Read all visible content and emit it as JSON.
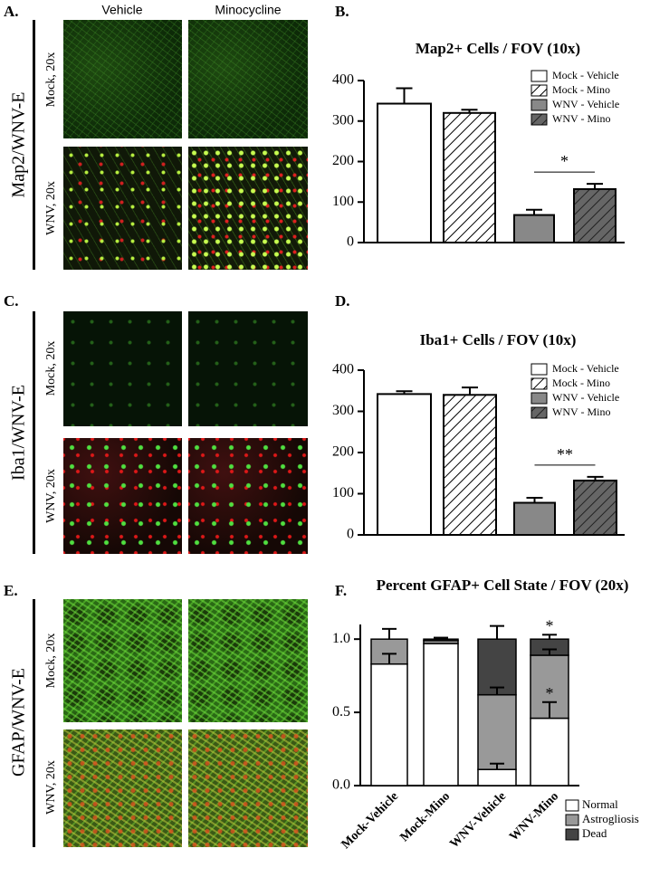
{
  "figure": {
    "panels": [
      "A.",
      "B.",
      "C.",
      "D.",
      "E.",
      "F."
    ],
    "columns": [
      "Vehicle",
      "Minocycline"
    ],
    "rows": [
      {
        "label": "Map2/WNV-E",
        "conditions": [
          "Mock, 20x",
          "WNV, 20x"
        ]
      },
      {
        "label": "Iba1/WNV-E",
        "conditions": [
          "Mock, 20x",
          "WNV, 20x"
        ]
      },
      {
        "label": "GFAP/WNV-E",
        "conditions": [
          "Mock, 20x",
          "WNV, 20x"
        ]
      }
    ]
  },
  "chart_data": [
    {
      "type": "bar",
      "title": "Map2+ Cells / FOV (10x)",
      "categories": [
        "Mock - Vehicle",
        "Mock - Mino",
        "WNV - Vehicle",
        "WNV - Mino"
      ],
      "values": [
        343,
        320,
        68,
        132
      ],
      "errors": [
        38,
        8,
        13,
        13
      ],
      "colors": [
        "#ffffff",
        "#ffffff",
        "#888888",
        "#666666"
      ],
      "hatch": [
        false,
        true,
        false,
        true
      ],
      "ylim": [
        0,
        400
      ],
      "yticks": [
        0,
        100,
        200,
        300,
        400
      ],
      "annotation": "*"
    },
    {
      "type": "bar",
      "title": "Iba1+ Cells / FOV (10x)",
      "categories": [
        "Mock - Vehicle",
        "Mock - Mino",
        "WNV - Vehicle",
        "WNV - Mino"
      ],
      "values": [
        342,
        340,
        78,
        132
      ],
      "errors": [
        7,
        18,
        12,
        9
      ],
      "colors": [
        "#ffffff",
        "#ffffff",
        "#888888",
        "#666666"
      ],
      "hatch": [
        false,
        true,
        false,
        true
      ],
      "ylim": [
        0,
        400
      ],
      "yticks": [
        0,
        100,
        200,
        300,
        400
      ],
      "annotation": "**"
    },
    {
      "type": "stacked_bar",
      "title": "Percent GFAP+ Cell State / FOV (20x)",
      "categories": [
        "Mock-Vehicle",
        "Mock-Mino",
        "WNV-Vehicle",
        "WNV-Mino"
      ],
      "series": [
        {
          "name": "Normal",
          "color": "#ffffff",
          "values": [
            0.83,
            0.97,
            0.11,
            0.46
          ],
          "errors": [
            0.07,
            null,
            0.04,
            0.11
          ]
        },
        {
          "name": "Astrogliosis",
          "color": "#999999",
          "values": [
            0.17,
            0.02,
            0.51,
            0.43
          ],
          "errors": [
            0.07,
            null,
            0.05,
            0.04
          ]
        },
        {
          "name": "Dead",
          "color": "#444444",
          "values": [
            0,
            0.01,
            0.38,
            0.11
          ],
          "errors": [
            null,
            0.01,
            0.09,
            0.03
          ]
        }
      ],
      "ylim": [
        0,
        1.1
      ],
      "yticks": [
        {
          "value": 0,
          "label": "0.0"
        },
        {
          "value": 0.5,
          "label": "0.5"
        },
        {
          "value": 1,
          "label": "1.0"
        }
      ],
      "annotations": [
        "*",
        "*"
      ]
    }
  ]
}
